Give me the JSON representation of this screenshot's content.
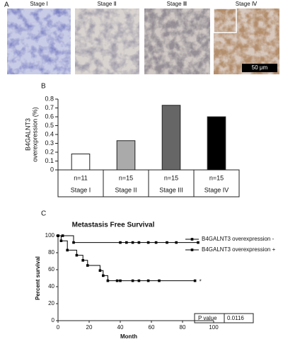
{
  "panel_a": {
    "label": "A",
    "stages": [
      "Stage I",
      "Stage Ⅱ",
      "Stage Ⅲ",
      "Stage Ⅳ"
    ],
    "scale_bar": "50 μm"
  },
  "chart_data": [
    {
      "type": "bar",
      "panel_label": "B",
      "y_label": [
        "B4GALNT3",
        "overexpression (%)"
      ],
      "categories": [
        "Stage I",
        "Stage II",
        "Stage III",
        "Stage IV"
      ],
      "n_labels": [
        "n=11",
        "n=15",
        "n=15",
        "n=15"
      ],
      "values": [
        0.18,
        0.33,
        0.73,
        0.6
      ],
      "colors": [
        "#ffffff",
        "#aaaaaa",
        "#666666",
        "#000000"
      ],
      "ylim": [
        0,
        0.8
      ],
      "yticks": [
        0,
        0.1,
        0.2,
        0.3,
        0.4,
        0.5,
        0.6,
        0.7,
        0.8
      ]
    },
    {
      "type": "survival",
      "panel_label": "C",
      "title": "Metastasis Free Survival",
      "y_label": "Percent survival",
      "x_label": "Month",
      "xlim": [
        0,
        100
      ],
      "xticks": [
        0,
        20,
        40,
        60,
        80,
        100
      ],
      "ylim": [
        0,
        100
      ],
      "yticks": [
        0,
        20,
        40,
        60,
        80,
        100
      ],
      "series": [
        {
          "name": "B4GALNT3 overexpression -",
          "color": "#000000",
          "x": [
            0,
            3,
            10,
            40,
            44,
            48,
            52,
            58,
            63,
            70,
            76,
            90
          ],
          "values": [
            100,
            100,
            92,
            92,
            92,
            92,
            92,
            92,
            92,
            92,
            92,
            92
          ]
        },
        {
          "name": "B4GALNT3 overexpression +",
          "color": "#000000",
          "x": [
            0,
            2,
            6,
            12,
            16,
            19,
            27,
            29,
            32,
            38,
            40,
            48,
            52,
            58,
            65,
            88
          ],
          "values": [
            100,
            94,
            83,
            77,
            71,
            65,
            59,
            53,
            47,
            47,
            47,
            47,
            47,
            47,
            47,
            47
          ]
        }
      ],
      "annotation": "*",
      "p_value_label": "P value",
      "p_value": 0.0116
    }
  ]
}
